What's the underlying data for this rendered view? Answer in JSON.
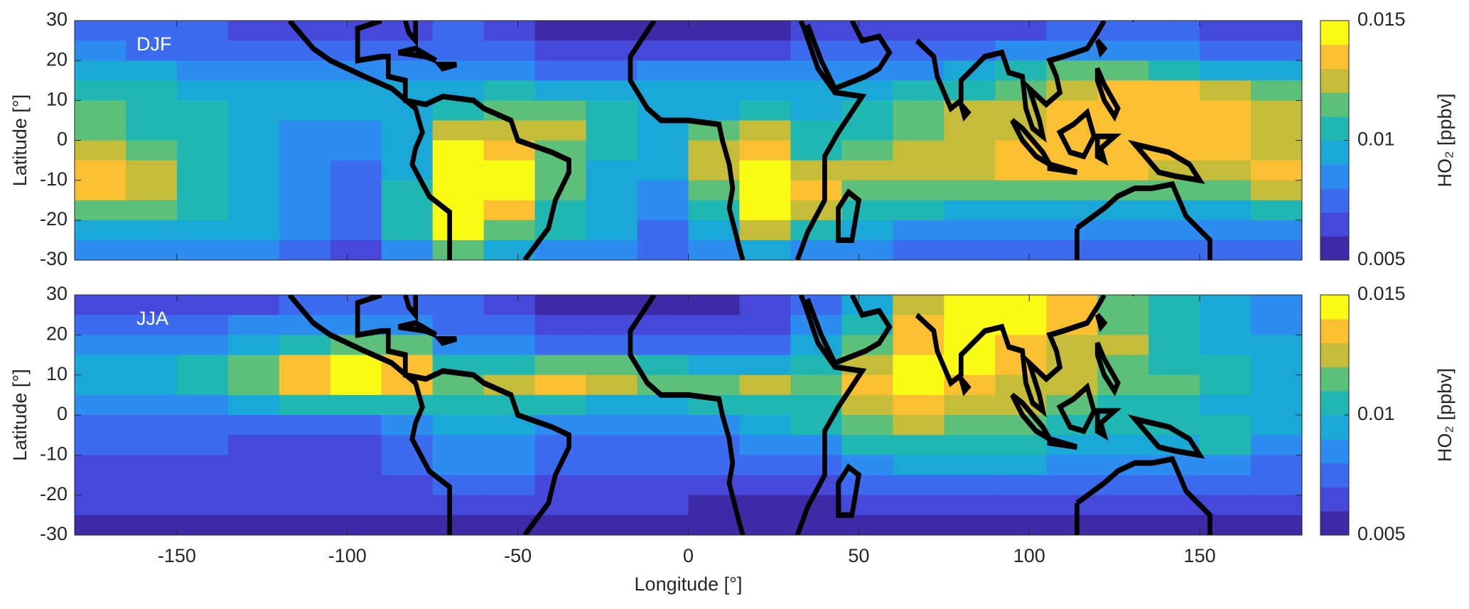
{
  "chart_data": [
    {
      "type": "heatmap",
      "panel_label": "DJF",
      "ylabel": "Latitude [°]",
      "colorbar_label": "HO₂ [ppbv]",
      "x": [
        -172.5,
        -157.5,
        -142.5,
        -127.5,
        -112.5,
        -97.5,
        -82.5,
        -67.5,
        -52.5,
        -37.5,
        -22.5,
        -7.5,
        7.5,
        22.5,
        37.5,
        52.5,
        67.5,
        82.5,
        97.5,
        112.5,
        127.5,
        142.5,
        157.5,
        172.5
      ],
      "y": [
        27.5,
        22.5,
        17.5,
        12.5,
        7.5,
        2.5,
        -2.5,
        -7.5,
        -12.5,
        -17.5,
        -22.5,
        -27.5
      ],
      "values": [
        [
          0.0075,
          0.0075,
          0.0075,
          0.0065,
          0.0065,
          0.0065,
          0.0065,
          0.0075,
          0.0065,
          0.0055,
          0.0055,
          0.0055,
          0.0055,
          0.0055,
          0.0065,
          0.0065,
          0.0065,
          0.0065,
          0.0065,
          0.0075,
          0.0075,
          0.0075,
          0.0065,
          0.0065
        ],
        [
          0.0085,
          0.0075,
          0.0075,
          0.0075,
          0.0075,
          0.0075,
          0.0075,
          0.0075,
          0.0075,
          0.0065,
          0.0065,
          0.0065,
          0.0065,
          0.0065,
          0.0075,
          0.0075,
          0.0075,
          0.0075,
          0.0085,
          0.0085,
          0.0085,
          0.0085,
          0.0075,
          0.0075
        ],
        [
          0.0095,
          0.0095,
          0.0085,
          0.0085,
          0.0085,
          0.0085,
          0.0085,
          0.0085,
          0.0085,
          0.0075,
          0.0075,
          0.0085,
          0.0085,
          0.0085,
          0.0085,
          0.0085,
          0.0085,
          0.0095,
          0.0105,
          0.0115,
          0.0115,
          0.0105,
          0.0095,
          0.0095
        ],
        [
          0.0105,
          0.0105,
          0.0095,
          0.0095,
          0.0095,
          0.0095,
          0.0095,
          0.0095,
          0.0105,
          0.0095,
          0.0095,
          0.0095,
          0.0095,
          0.0095,
          0.0095,
          0.0095,
          0.0105,
          0.0105,
          0.0115,
          0.0125,
          0.0135,
          0.0135,
          0.0125,
          0.0115
        ],
        [
          0.0115,
          0.0105,
          0.0105,
          0.0095,
          0.0095,
          0.0095,
          0.0095,
          0.0105,
          0.0115,
          0.0115,
          0.0105,
          0.0095,
          0.0095,
          0.0105,
          0.0095,
          0.0105,
          0.0115,
          0.0125,
          0.0125,
          0.0135,
          0.0135,
          0.0135,
          0.0135,
          0.0125
        ],
        [
          0.0115,
          0.0105,
          0.0105,
          0.0095,
          0.0085,
          0.0085,
          0.0095,
          0.0125,
          0.0125,
          0.0125,
          0.0105,
          0.0095,
          0.0115,
          0.0125,
          0.0105,
          0.0105,
          0.0115,
          0.0125,
          0.0125,
          0.0135,
          0.0135,
          0.0135,
          0.0135,
          0.0125
        ],
        [
          0.0125,
          0.0115,
          0.0105,
          0.0095,
          0.0085,
          0.0085,
          0.0095,
          0.0145,
          0.0135,
          0.0115,
          0.0105,
          0.0095,
          0.0125,
          0.0135,
          0.0105,
          0.0115,
          0.0125,
          0.0125,
          0.0135,
          0.0135,
          0.0135,
          0.0135,
          0.0135,
          0.0125
        ],
        [
          0.0135,
          0.0125,
          0.0105,
          0.0095,
          0.0085,
          0.0075,
          0.0095,
          0.0145,
          0.0145,
          0.0115,
          0.0095,
          0.0095,
          0.0125,
          0.0145,
          0.0125,
          0.0125,
          0.0125,
          0.0125,
          0.0135,
          0.0135,
          0.0135,
          0.0125,
          0.0125,
          0.0135
        ],
        [
          0.0135,
          0.0125,
          0.0105,
          0.0095,
          0.0085,
          0.0075,
          0.0105,
          0.0145,
          0.0145,
          0.0115,
          0.0095,
          0.0085,
          0.0115,
          0.0145,
          0.0135,
          0.0115,
          0.0115,
          0.0115,
          0.0115,
          0.0115,
          0.0115,
          0.0115,
          0.0115,
          0.0125
        ],
        [
          0.0115,
          0.0115,
          0.0105,
          0.0095,
          0.0085,
          0.0075,
          0.0105,
          0.0145,
          0.0135,
          0.0105,
          0.0095,
          0.0085,
          0.0105,
          0.0145,
          0.0125,
          0.0105,
          0.0105,
          0.0095,
          0.0095,
          0.0095,
          0.0095,
          0.0095,
          0.0095,
          0.0105
        ],
        [
          0.0095,
          0.0095,
          0.0095,
          0.0095,
          0.0085,
          0.0075,
          0.0105,
          0.0145,
          0.0115,
          0.0105,
          0.0095,
          0.0075,
          0.0095,
          0.0125,
          0.0105,
          0.0095,
          0.0085,
          0.0085,
          0.0085,
          0.0085,
          0.0085,
          0.0085,
          0.0085,
          0.0085
        ],
        [
          0.0085,
          0.0085,
          0.0085,
          0.0085,
          0.0075,
          0.0065,
          0.0085,
          0.0115,
          0.0095,
          0.0085,
          0.0085,
          0.0075,
          0.0085,
          0.0095,
          0.0085,
          0.0085,
          0.0075,
          0.0075,
          0.0075,
          0.0075,
          0.0075,
          0.0075,
          0.0075,
          0.0075
        ]
      ],
      "xlim": [
        -180,
        180
      ],
      "ylim": [
        -30,
        30
      ],
      "xticks": [
        -150,
        -100,
        -50,
        0,
        50,
        100,
        150
      ],
      "yticks": [
        -30,
        -20,
        -10,
        0,
        10,
        20,
        30
      ],
      "clim": [
        0.005,
        0.015
      ],
      "cticks": [
        0.005,
        0.01,
        0.015
      ],
      "colors": [
        "#3e2aa6",
        "#4548d8",
        "#3c6bf0",
        "#2d8cf0",
        "#1aa8d8",
        "#20b7b3",
        "#5cc07b",
        "#c5bc3a",
        "#fbc031",
        "#f9fb15"
      ]
    },
    {
      "type": "heatmap",
      "panel_label": "JJA",
      "ylabel": "Latitude [°]",
      "xlabel": "Longitude [°]",
      "colorbar_label": "HO₂ [ppbv]",
      "x": [
        -172.5,
        -157.5,
        -142.5,
        -127.5,
        -112.5,
        -97.5,
        -82.5,
        -67.5,
        -52.5,
        -37.5,
        -22.5,
        -7.5,
        7.5,
        22.5,
        37.5,
        52.5,
        67.5,
        82.5,
        97.5,
        112.5,
        127.5,
        142.5,
        157.5,
        172.5
      ],
      "y": [
        27.5,
        22.5,
        17.5,
        12.5,
        7.5,
        2.5,
        -2.5,
        -7.5,
        -12.5,
        -17.5,
        -22.5,
        -27.5
      ],
      "values": [
        [
          0.0065,
          0.0065,
          0.0065,
          0.0065,
          0.0075,
          0.0075,
          0.0075,
          0.0075,
          0.0065,
          0.0055,
          0.0055,
          0.0055,
          0.0055,
          0.0065,
          0.0075,
          0.0095,
          0.0125,
          0.0145,
          0.0145,
          0.0135,
          0.0115,
          0.0105,
          0.0095,
          0.0085
        ],
        [
          0.0075,
          0.0075,
          0.0075,
          0.0085,
          0.0085,
          0.0085,
          0.0085,
          0.0075,
          0.0075,
          0.0065,
          0.0065,
          0.0065,
          0.0065,
          0.0065,
          0.0085,
          0.0105,
          0.0135,
          0.0145,
          0.0145,
          0.0135,
          0.0115,
          0.0105,
          0.0095,
          0.0085
        ],
        [
          0.0085,
          0.0085,
          0.0085,
          0.0095,
          0.0105,
          0.0115,
          0.0115,
          0.0085,
          0.0085,
          0.0075,
          0.0075,
          0.0075,
          0.0075,
          0.0075,
          0.0095,
          0.0115,
          0.0135,
          0.0145,
          0.0135,
          0.0125,
          0.0125,
          0.0105,
          0.0095,
          0.0095
        ],
        [
          0.0095,
          0.0095,
          0.0105,
          0.0115,
          0.0135,
          0.0145,
          0.0135,
          0.0105,
          0.0105,
          0.0115,
          0.0115,
          0.0105,
          0.0095,
          0.0095,
          0.0105,
          0.0125,
          0.0145,
          0.0145,
          0.0135,
          0.0125,
          0.0115,
          0.0105,
          0.0105,
          0.0095
        ],
        [
          0.0095,
          0.0095,
          0.0105,
          0.0115,
          0.0135,
          0.0145,
          0.0135,
          0.0115,
          0.0125,
          0.0135,
          0.0125,
          0.0115,
          0.0115,
          0.0125,
          0.0115,
          0.0135,
          0.0145,
          0.0135,
          0.0125,
          0.0125,
          0.0115,
          0.0115,
          0.0105,
          0.0095
        ],
        [
          0.0085,
          0.0085,
          0.0085,
          0.0095,
          0.0105,
          0.0105,
          0.0105,
          0.0105,
          0.0105,
          0.0105,
          0.0095,
          0.0095,
          0.0105,
          0.0105,
          0.0105,
          0.0125,
          0.0135,
          0.0125,
          0.0125,
          0.0115,
          0.0105,
          0.0105,
          0.0095,
          0.0095
        ],
        [
          0.0075,
          0.0075,
          0.0075,
          0.0075,
          0.0075,
          0.0075,
          0.0085,
          0.0095,
          0.0095,
          0.0085,
          0.0085,
          0.0085,
          0.0085,
          0.0095,
          0.0105,
          0.0115,
          0.0125,
          0.0115,
          0.0115,
          0.0105,
          0.0105,
          0.0105,
          0.0105,
          0.0095
        ],
        [
          0.0075,
          0.0075,
          0.0075,
          0.0065,
          0.0065,
          0.0065,
          0.0075,
          0.0085,
          0.0085,
          0.0075,
          0.0075,
          0.0075,
          0.0075,
          0.0085,
          0.0085,
          0.0105,
          0.0105,
          0.0105,
          0.0105,
          0.0095,
          0.0095,
          0.0095,
          0.0105,
          0.0085
        ],
        [
          0.0065,
          0.0065,
          0.0065,
          0.0065,
          0.0065,
          0.0065,
          0.0075,
          0.0085,
          0.0085,
          0.0075,
          0.0075,
          0.0075,
          0.0075,
          0.0075,
          0.0075,
          0.0085,
          0.0095,
          0.0095,
          0.0095,
          0.0085,
          0.0085,
          0.0085,
          0.0085,
          0.0075
        ],
        [
          0.0065,
          0.0065,
          0.0065,
          0.0065,
          0.0065,
          0.0065,
          0.0065,
          0.0075,
          0.0075,
          0.0065,
          0.0065,
          0.0065,
          0.0065,
          0.0065,
          0.0065,
          0.0075,
          0.0075,
          0.0075,
          0.0075,
          0.0075,
          0.0075,
          0.0075,
          0.0075,
          0.0075
        ],
        [
          0.0065,
          0.0065,
          0.0065,
          0.0065,
          0.0065,
          0.0065,
          0.0065,
          0.0065,
          0.0065,
          0.0065,
          0.0065,
          0.0065,
          0.0055,
          0.0055,
          0.0055,
          0.0065,
          0.0065,
          0.0065,
          0.0065,
          0.0065,
          0.0065,
          0.0065,
          0.0065,
          0.0065
        ],
        [
          0.0055,
          0.0055,
          0.0055,
          0.0055,
          0.0055,
          0.0055,
          0.0055,
          0.0055,
          0.0055,
          0.0055,
          0.0055,
          0.0055,
          0.0055,
          0.0055,
          0.0055,
          0.0055,
          0.0055,
          0.0055,
          0.0055,
          0.0055,
          0.0055,
          0.0055,
          0.0055,
          0.0055
        ]
      ],
      "xlim": [
        -180,
        180
      ],
      "ylim": [
        -30,
        30
      ],
      "xticks": [
        -150,
        -100,
        -50,
        0,
        50,
        100,
        150
      ],
      "yticks": [
        -30,
        -20,
        -10,
        0,
        10,
        20,
        30
      ],
      "clim": [
        0.005,
        0.015
      ],
      "cticks": [
        0.005,
        0.01,
        0.015
      ],
      "colors": [
        "#3e2aa6",
        "#4548d8",
        "#3c6bf0",
        "#2d8cf0",
        "#1aa8d8",
        "#20b7b3",
        "#5cc07b",
        "#c5bc3a",
        "#fbc031",
        "#f9fb15"
      ]
    }
  ]
}
